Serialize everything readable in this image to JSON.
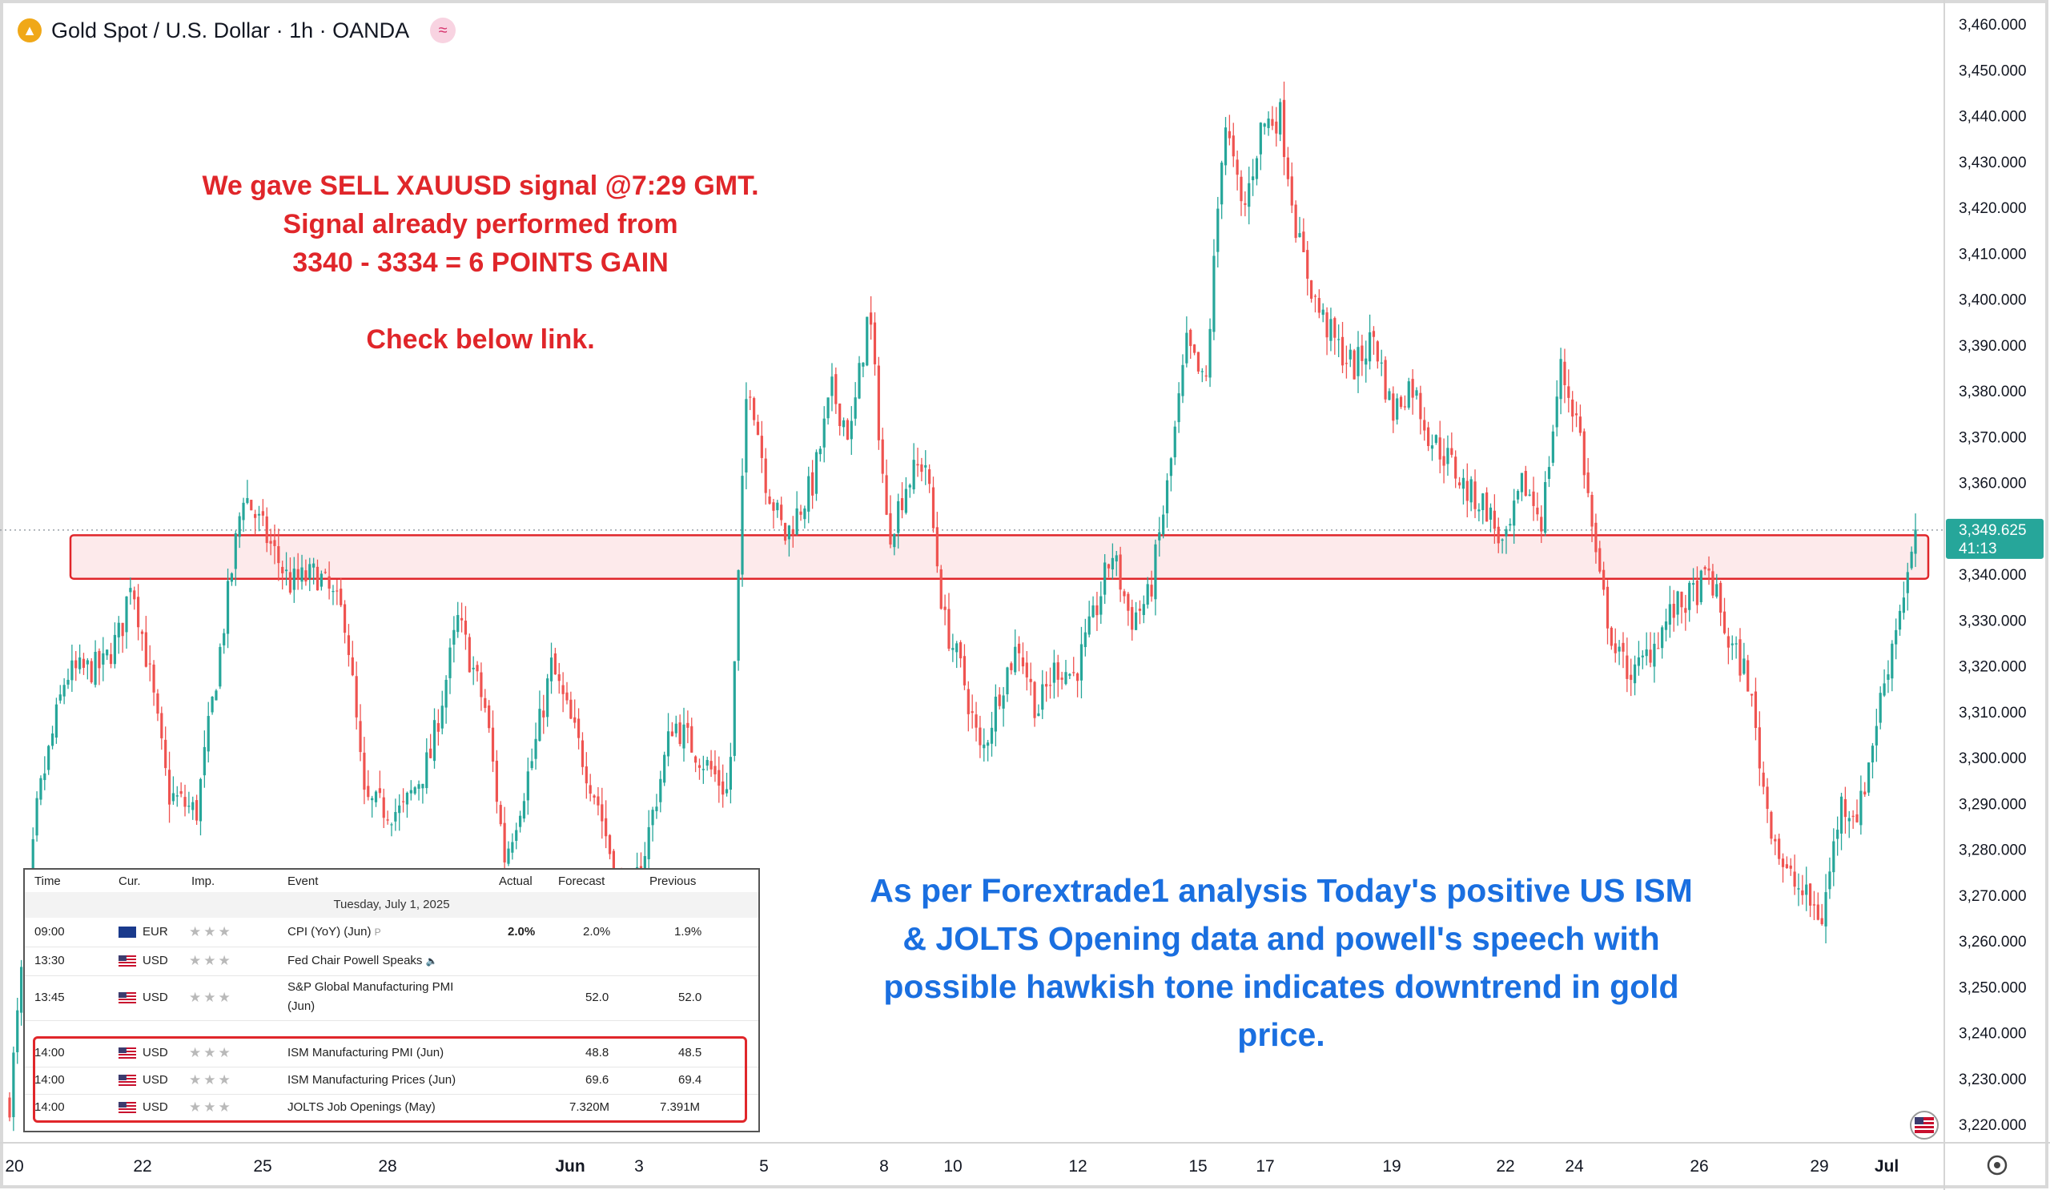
{
  "header": {
    "title": "Gold Spot / U.S. Dollar · 1h · OANDA",
    "logo_icon": "gold-coin-icon",
    "badge_icon": "approx-icon",
    "badge_glyph": "≈"
  },
  "annotations": {
    "red_lines": [
      "We gave SELL XAUUSD signal @7:29 GMT.",
      "Signal already performed from",
      "3340 - 3334 = 6 POINTS GAIN",
      "Check below link."
    ],
    "blue_lines": [
      "As per Forextrade1 analysis Today's positive US ISM",
      "& JOLTS Opening data and powell's speech with",
      "possible hawkish tone indicates downtrend in gold",
      "price."
    ],
    "red_color": "#e0262a",
    "blue_color": "#1a6fe0"
  },
  "price_label": {
    "price": "3,349.625",
    "countdown": "41:13"
  },
  "calendar": {
    "columns": [
      "Time",
      "Cur.",
      "Imp.",
      "Event",
      "Actual",
      "Forecast",
      "Previous"
    ],
    "date": "Tuesday, July 1, 2025",
    "rows": [
      {
        "time": "09:00",
        "cur": "EUR",
        "event": "CPI (YoY) (Jun)",
        "event_suffix": "P",
        "actual": "2.0%",
        "forecast": "2.0%",
        "previous": "1.9%"
      },
      {
        "time": "13:30",
        "cur": "USD",
        "event": "Fed Chair Powell Speaks",
        "event_suffix": "🔈",
        "actual": "",
        "forecast": "",
        "previous": ""
      },
      {
        "time": "13:45",
        "cur": "USD",
        "event": "S&P Global Manufacturing PMI",
        "event_line2": "(Jun)",
        "actual": "",
        "forecast": "52.0",
        "previous": "52.0"
      },
      {
        "time": "14:00",
        "cur": "USD",
        "event": "ISM Manufacturing PMI (Jun)",
        "actual": "",
        "forecast": "48.8",
        "previous": "48.5"
      },
      {
        "time": "14:00",
        "cur": "USD",
        "event": "ISM Manufacturing Prices (Jun)",
        "actual": "",
        "forecast": "69.6",
        "previous": "69.4"
      },
      {
        "time": "14:00",
        "cur": "USD",
        "event": "JOLTS Job Openings (May)",
        "actual": "",
        "forecast": "7.320M",
        "previous": "7.391M"
      }
    ],
    "stars": "★★★"
  },
  "chart_data": {
    "type": "candlestick",
    "title": "Gold Spot / U.S. Dollar · 1h · OANDA",
    "y_ticks": [
      "3,460.000",
      "3,450.000",
      "3,440.000",
      "3,430.000",
      "3,420.000",
      "3,410.000",
      "3,400.000",
      "3,390.000",
      "3,380.000",
      "3,370.000",
      "3,360.000",
      "3,350.000",
      "3,340.000",
      "3,330.000",
      "3,320.000",
      "3,310.000",
      "3,300.000",
      "3,290.000",
      "3,280.000",
      "3,270.000",
      "3,260.000",
      "3,250.000",
      "3,240.000",
      "3,230.000",
      "3,220.000"
    ],
    "ylim": [
      3213,
      3465
    ],
    "x_ticks": [
      "20",
      "22",
      "25",
      "28",
      "Jun",
      "3",
      "5",
      "8",
      "10",
      "12",
      "15",
      "17",
      "19",
      "22",
      "24",
      "26",
      "29",
      "Jul"
    ],
    "x_tick_bold": [
      "Jun",
      "Jul"
    ],
    "approx_close_path": [
      [
        0,
        3225
      ],
      [
        1.5,
        3290
      ],
      [
        3,
        3318
      ],
      [
        5,
        3320
      ],
      [
        6,
        3328
      ],
      [
        6.5,
        3340
      ],
      [
        7.5,
        3318
      ],
      [
        8.5,
        3292
      ],
      [
        10,
        3288
      ],
      [
        11.5,
        3330
      ],
      [
        12.5,
        3358
      ],
      [
        13.5,
        3350
      ],
      [
        15,
        3338
      ],
      [
        16.5,
        3340
      ],
      [
        18,
        3330
      ],
      [
        19,
        3290
      ],
      [
        21,
        3288
      ],
      [
        22.5,
        3300
      ],
      [
        24,
        3330
      ],
      [
        25.5,
        3310
      ],
      [
        26.5,
        3278
      ],
      [
        28,
        3300
      ],
      [
        29,
        3320
      ],
      [
        30.5,
        3302
      ],
      [
        31.5,
        3290
      ],
      [
        33,
        3265
      ],
      [
        34,
        3280
      ],
      [
        35.5,
        3308
      ],
      [
        37,
        3300
      ],
      [
        38.5,
        3292
      ],
      [
        39.5,
        3385
      ],
      [
        40.5,
        3360
      ],
      [
        41.5,
        3348
      ],
      [
        43,
        3360
      ],
      [
        44,
        3380
      ],
      [
        45,
        3370
      ],
      [
        46,
        3398
      ],
      [
        47,
        3348
      ],
      [
        48,
        3360
      ],
      [
        49,
        3365
      ],
      [
        50,
        3330
      ],
      [
        51,
        3318
      ],
      [
        52,
        3300
      ],
      [
        53,
        3315
      ],
      [
        54,
        3325
      ],
      [
        55,
        3310
      ],
      [
        56,
        3320
      ],
      [
        57,
        3318
      ],
      [
        58,
        3330
      ],
      [
        59,
        3345
      ],
      [
        60,
        3330
      ],
      [
        61,
        3335
      ],
      [
        62,
        3360
      ],
      [
        63,
        3390
      ],
      [
        64,
        3380
      ],
      [
        65,
        3440
      ],
      [
        66,
        3418
      ],
      [
        67,
        3438
      ],
      [
        68,
        3440
      ],
      [
        69,
        3412
      ],
      [
        70,
        3398
      ],
      [
        71,
        3390
      ],
      [
        72,
        3385
      ],
      [
        73,
        3392
      ],
      [
        74,
        3375
      ],
      [
        75,
        3382
      ],
      [
        76,
        3370
      ],
      [
        77,
        3365
      ],
      [
        78,
        3358
      ],
      [
        79,
        3355
      ],
      [
        80,
        3345
      ],
      [
        81,
        3360
      ],
      [
        82,
        3352
      ],
      [
        83,
        3385
      ],
      [
        84,
        3372
      ],
      [
        85,
        3340
      ],
      [
        86,
        3322
      ],
      [
        87,
        3318
      ],
      [
        88,
        3325
      ],
      [
        89,
        3332
      ],
      [
        90,
        3335
      ],
      [
        91,
        3340
      ],
      [
        92,
        3325
      ],
      [
        93,
        3318
      ],
      [
        94,
        3290
      ],
      [
        95,
        3275
      ],
      [
        96,
        3270
      ],
      [
        97,
        3265
      ],
      [
        98,
        3290
      ],
      [
        99,
        3288
      ],
      [
        100,
        3310
      ],
      [
        101,
        3330
      ],
      [
        102,
        3347
      ]
    ],
    "zone": {
      "low": 3339,
      "high": 3348.5
    },
    "current_price": 3349.625
  }
}
